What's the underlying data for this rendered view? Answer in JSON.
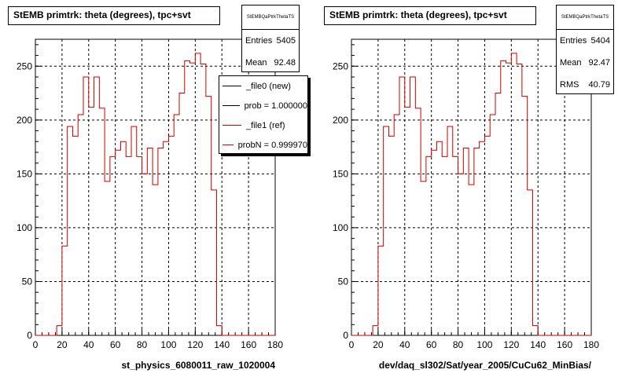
{
  "chart_data": [
    {
      "type": "histogram",
      "title": "StEMB primtrk: theta (degrees), tpc+svt",
      "xlabel": "st_physics_6080011_raw_1020004",
      "xlim": [
        0,
        180
      ],
      "ylim": [
        0,
        275
      ],
      "xticks": [
        0,
        20,
        40,
        60,
        80,
        100,
        120,
        140,
        160,
        180
      ],
      "yticks": [
        0,
        50,
        100,
        150,
        200,
        250
      ],
      "grid": true,
      "bin_width": 4,
      "bin_start": 0,
      "series": [
        {
          "color": "#cc0000",
          "values": [
            0,
            0,
            0,
            0,
            9,
            83,
            194,
            185,
            205,
            240,
            212,
            240,
            211,
            143,
            166,
            172,
            180,
            166,
            194,
            166,
            150,
            174,
            140,
            174,
            180,
            185,
            205,
            225,
            255,
            253,
            262,
            252,
            222,
            135,
            9,
            0,
            0,
            0,
            0,
            0,
            0,
            0,
            0,
            0,
            0
          ]
        }
      ],
      "stats": {
        "name": "StEMBQaPtrkThetaTS",
        "entries_label": "Entries",
        "entries": "5405",
        "mean_label": "Mean",
        "mean": "92.48"
      },
      "legend": [
        {
          "label": "_file0 (new)",
          "color": "#000000"
        },
        {
          "label": "prob = 1.000000",
          "color": "#000000"
        },
        {
          "label": "_file1 (ref)",
          "color": "#cc0000"
        },
        {
          "label": "probN = 0.999970",
          "color": "#cc0000"
        }
      ]
    },
    {
      "type": "histogram",
      "title": "StEMB primtrk: theta (degrees), tpc+svt",
      "xlabel": "dev/daq_sl302/Sat/year_2005/CuCu62_MinBias/",
      "xlim": [
        0,
        180
      ],
      "ylim": [
        0,
        275
      ],
      "xticks": [
        0,
        20,
        40,
        60,
        80,
        100,
        120,
        140,
        160,
        180
      ],
      "yticks": [
        0,
        50,
        100,
        150,
        200,
        250
      ],
      "grid": true,
      "bin_width": 4,
      "bin_start": 0,
      "series": [
        {
          "color": "#cc0000",
          "values": [
            0,
            0,
            0,
            0,
            9,
            83,
            194,
            185,
            205,
            240,
            212,
            240,
            211,
            143,
            166,
            172,
            180,
            166,
            194,
            166,
            150,
            174,
            140,
            174,
            180,
            185,
            205,
            225,
            255,
            253,
            262,
            252,
            222,
            135,
            9,
            0,
            0,
            0,
            0,
            0,
            0,
            0,
            0,
            0,
            0
          ]
        }
      ],
      "stats": {
        "name": "StEMBQaPtrkThetaTS",
        "entries_label": "Entries",
        "entries": "5404",
        "mean_label": "Mean",
        "mean": "92.47",
        "rms_label": "RMS",
        "rms": "40.79"
      }
    }
  ]
}
